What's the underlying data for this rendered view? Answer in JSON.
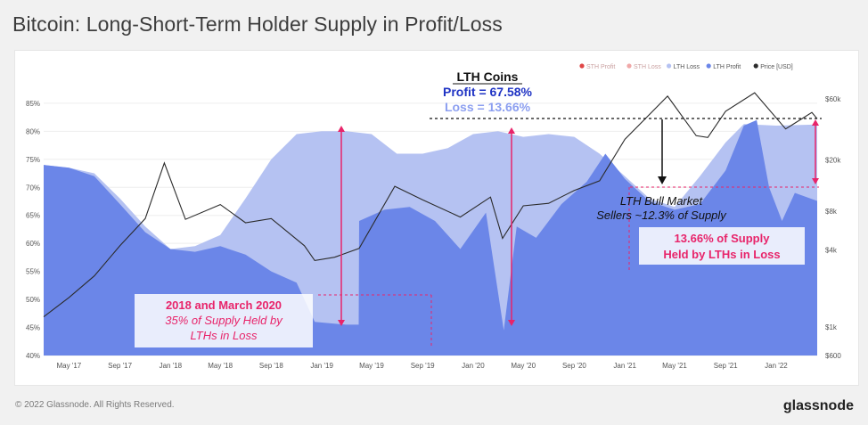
{
  "header": {
    "title": "Bitcoin: Long-Short-Term Holder Supply in Profit/Loss"
  },
  "footer": {
    "copyright": "© 2022 Glassnode. All Rights Reserved.",
    "brand": "glassnode"
  },
  "colors": {
    "lth_profit": "#6b86e8",
    "lth_loss": "#b5c2f2",
    "sth_profit": "#e04646",
    "sth_loss": "#f0a8a8",
    "price": "#2b2b2b",
    "annotation": "#e8246a",
    "profit_text": "#1f33c4",
    "loss_text": "#8c9ff0"
  },
  "chart_data": {
    "type": "area",
    "legend_position": "top-right",
    "legend": [
      {
        "key": "sth_profit",
        "label": "STH Profit"
      },
      {
        "key": "sth_loss",
        "label": "STH Loss"
      },
      {
        "key": "lth_loss",
        "label": "LTH Loss"
      },
      {
        "key": "lth_profit",
        "label": "LTH Profit"
      },
      {
        "key": "price",
        "label": "Price [USD]"
      }
    ],
    "y_left": {
      "ylim": [
        40,
        88
      ],
      "ticks": [
        "85%",
        "80%",
        "75%",
        "70%",
        "65%",
        "60%",
        "55%",
        "50%",
        "45%",
        "40%"
      ],
      "tick_values": [
        85,
        80,
        75,
        70,
        65,
        60,
        55,
        50,
        45,
        40
      ]
    },
    "y_right": {
      "scale": "log",
      "ylim": [
        600,
        75000
      ],
      "ticks": [
        "$60k",
        "$20k",
        "$8k",
        "$4k",
        "$1k",
        "$600"
      ],
      "tick_values": [
        60000,
        20000,
        8000,
        4000,
        1000,
        600
      ]
    },
    "x_axis": {
      "start": "2017-03-01",
      "end": "2022-04-10",
      "ticks": [
        {
          "label": "May '17",
          "date": "2017-05-01"
        },
        {
          "label": "Sep '17",
          "date": "2017-09-01"
        },
        {
          "label": "Jan '18",
          "date": "2018-01-01"
        },
        {
          "label": "May '18",
          "date": "2018-05-01"
        },
        {
          "label": "Sep '18",
          "date": "2018-09-01"
        },
        {
          "label": "Jan '19",
          "date": "2019-01-01"
        },
        {
          "label": "May '19",
          "date": "2019-05-01"
        },
        {
          "label": "Sep '19",
          "date": "2019-09-01"
        },
        {
          "label": "Jan '20",
          "date": "2020-01-01"
        },
        {
          "label": "May '20",
          "date": "2020-05-01"
        },
        {
          "label": "Sep '20",
          "date": "2020-09-01"
        },
        {
          "label": "Jan '21",
          "date": "2021-01-01"
        },
        {
          "label": "May '21",
          "date": "2021-05-01"
        },
        {
          "label": "Sep '21",
          "date": "2021-09-01"
        },
        {
          "label": "Jan '22",
          "date": "2022-01-01"
        }
      ]
    },
    "lth_total": [
      [
        "2017-03-01",
        74.0
      ],
      [
        "2017-05-01",
        73.5
      ],
      [
        "2017-07-01",
        72.5
      ],
      [
        "2017-09-01",
        68.0
      ],
      [
        "2017-11-01",
        63.0
      ],
      [
        "2018-01-01",
        59.0
      ],
      [
        "2018-03-01",
        59.5
      ],
      [
        "2018-05-01",
        61.5
      ],
      [
        "2018-07-01",
        68.0
      ],
      [
        "2018-09-01",
        75.0
      ],
      [
        "2018-11-01",
        79.5
      ],
      [
        "2019-01-01",
        80.0
      ],
      [
        "2019-03-01",
        80.0
      ],
      [
        "2019-05-01",
        79.5
      ],
      [
        "2019-07-01",
        76.0
      ],
      [
        "2019-09-01",
        76.0
      ],
      [
        "2019-11-01",
        77.0
      ],
      [
        "2020-01-01",
        79.5
      ],
      [
        "2020-03-01",
        80.0
      ],
      [
        "2020-05-01",
        79.0
      ],
      [
        "2020-07-01",
        79.5
      ],
      [
        "2020-09-01",
        79.0
      ],
      [
        "2020-11-01",
        76.0
      ],
      [
        "2021-01-01",
        72.0
      ],
      [
        "2021-03-01",
        68.0
      ],
      [
        "2021-05-01",
        66.5
      ],
      [
        "2021-07-01",
        72.0
      ],
      [
        "2021-09-01",
        78.0
      ],
      [
        "2021-10-15",
        81.3
      ],
      [
        "2022-01-01",
        81.0
      ],
      [
        "2022-04-10",
        81.2
      ]
    ],
    "lth_profit": [
      [
        "2017-03-01",
        74.0
      ],
      [
        "2017-05-01",
        73.5
      ],
      [
        "2017-07-01",
        72.0
      ],
      [
        "2017-09-01",
        67.0
      ],
      [
        "2017-11-01",
        62.0
      ],
      [
        "2018-01-01",
        59.0
      ],
      [
        "2018-03-01",
        58.5
      ],
      [
        "2018-05-01",
        59.5
      ],
      [
        "2018-07-01",
        58.0
      ],
      [
        "2018-09-01",
        55.0
      ],
      [
        "2018-11-01",
        53.0
      ],
      [
        "2018-12-15",
        46.0
      ],
      [
        "2019-03-01",
        45.5
      ],
      [
        "2019-03-31",
        45.5
      ],
      [
        "2019-04-01",
        64.0
      ],
      [
        "2019-06-01",
        66.0
      ],
      [
        "2019-08-01",
        66.5
      ],
      [
        "2019-10-01",
        64.0
      ],
      [
        "2019-12-01",
        59.0
      ],
      [
        "2020-02-01",
        65.5
      ],
      [
        "2020-03-15",
        44.5
      ],
      [
        "2020-04-15",
        63.0
      ],
      [
        "2020-06-01",
        61.0
      ],
      [
        "2020-08-01",
        67.0
      ],
      [
        "2020-10-01",
        71.0
      ],
      [
        "2020-11-15",
        76.0
      ],
      [
        "2021-01-01",
        71.5
      ],
      [
        "2021-03-01",
        67.5
      ],
      [
        "2021-05-01",
        66.0
      ],
      [
        "2021-07-01",
        67.0
      ],
      [
        "2021-09-01",
        73.0
      ],
      [
        "2021-10-15",
        81.0
      ],
      [
        "2021-11-15",
        82.0
      ],
      [
        "2021-12-15",
        70.0
      ],
      [
        "2022-01-15",
        64.0
      ],
      [
        "2022-02-15",
        69.0
      ],
      [
        "2022-04-10",
        67.58
      ]
    ],
    "price": [
      [
        "2017-03-01",
        1200
      ],
      [
        "2017-05-01",
        1700
      ],
      [
        "2017-07-01",
        2500
      ],
      [
        "2017-09-01",
        4300
      ],
      [
        "2017-11-01",
        7000
      ],
      [
        "2017-12-17",
        19000
      ],
      [
        "2018-02-06",
        6900
      ],
      [
        "2018-05-01",
        9000
      ],
      [
        "2018-07-01",
        6500
      ],
      [
        "2018-09-01",
        7000
      ],
      [
        "2018-11-20",
        4300
      ],
      [
        "2018-12-15",
        3300
      ],
      [
        "2019-02-01",
        3500
      ],
      [
        "2019-04-01",
        4100
      ],
      [
        "2019-06-26",
        12500
      ],
      [
        "2019-09-01",
        9800
      ],
      [
        "2019-12-01",
        7200
      ],
      [
        "2020-02-12",
        10300
      ],
      [
        "2020-03-12",
        4900
      ],
      [
        "2020-05-01",
        8800
      ],
      [
        "2020-07-01",
        9200
      ],
      [
        "2020-09-01",
        11600
      ],
      [
        "2020-11-01",
        13800
      ],
      [
        "2021-01-01",
        29000
      ],
      [
        "2021-04-14",
        63000
      ],
      [
        "2021-06-22",
        31000
      ],
      [
        "2021-07-20",
        30000
      ],
      [
        "2021-09-01",
        48000
      ],
      [
        "2021-11-10",
        67000
      ],
      [
        "2022-01-24",
        35000
      ],
      [
        "2022-03-28",
        47000
      ],
      [
        "2022-04-10",
        42000
      ]
    ],
    "annotations": {
      "lth_coins": {
        "title": "LTH Coins",
        "profit": "Profit = 67.58%",
        "loss": "Loss = 13.66%"
      },
      "bull_market": {
        "line1": "LTH Bull Market",
        "line2": "Sellers ~12.3% of Supply"
      },
      "current_loss": {
        "line1": "13.66% of Supply",
        "line2": "Held by LTHs in Loss"
      },
      "cycle_2018": {
        "line1": "2018 and March 2020",
        "line2": "35% of Supply Held by",
        "line3": "LTHs in Loss"
      }
    },
    "watermark": "glassnode"
  }
}
